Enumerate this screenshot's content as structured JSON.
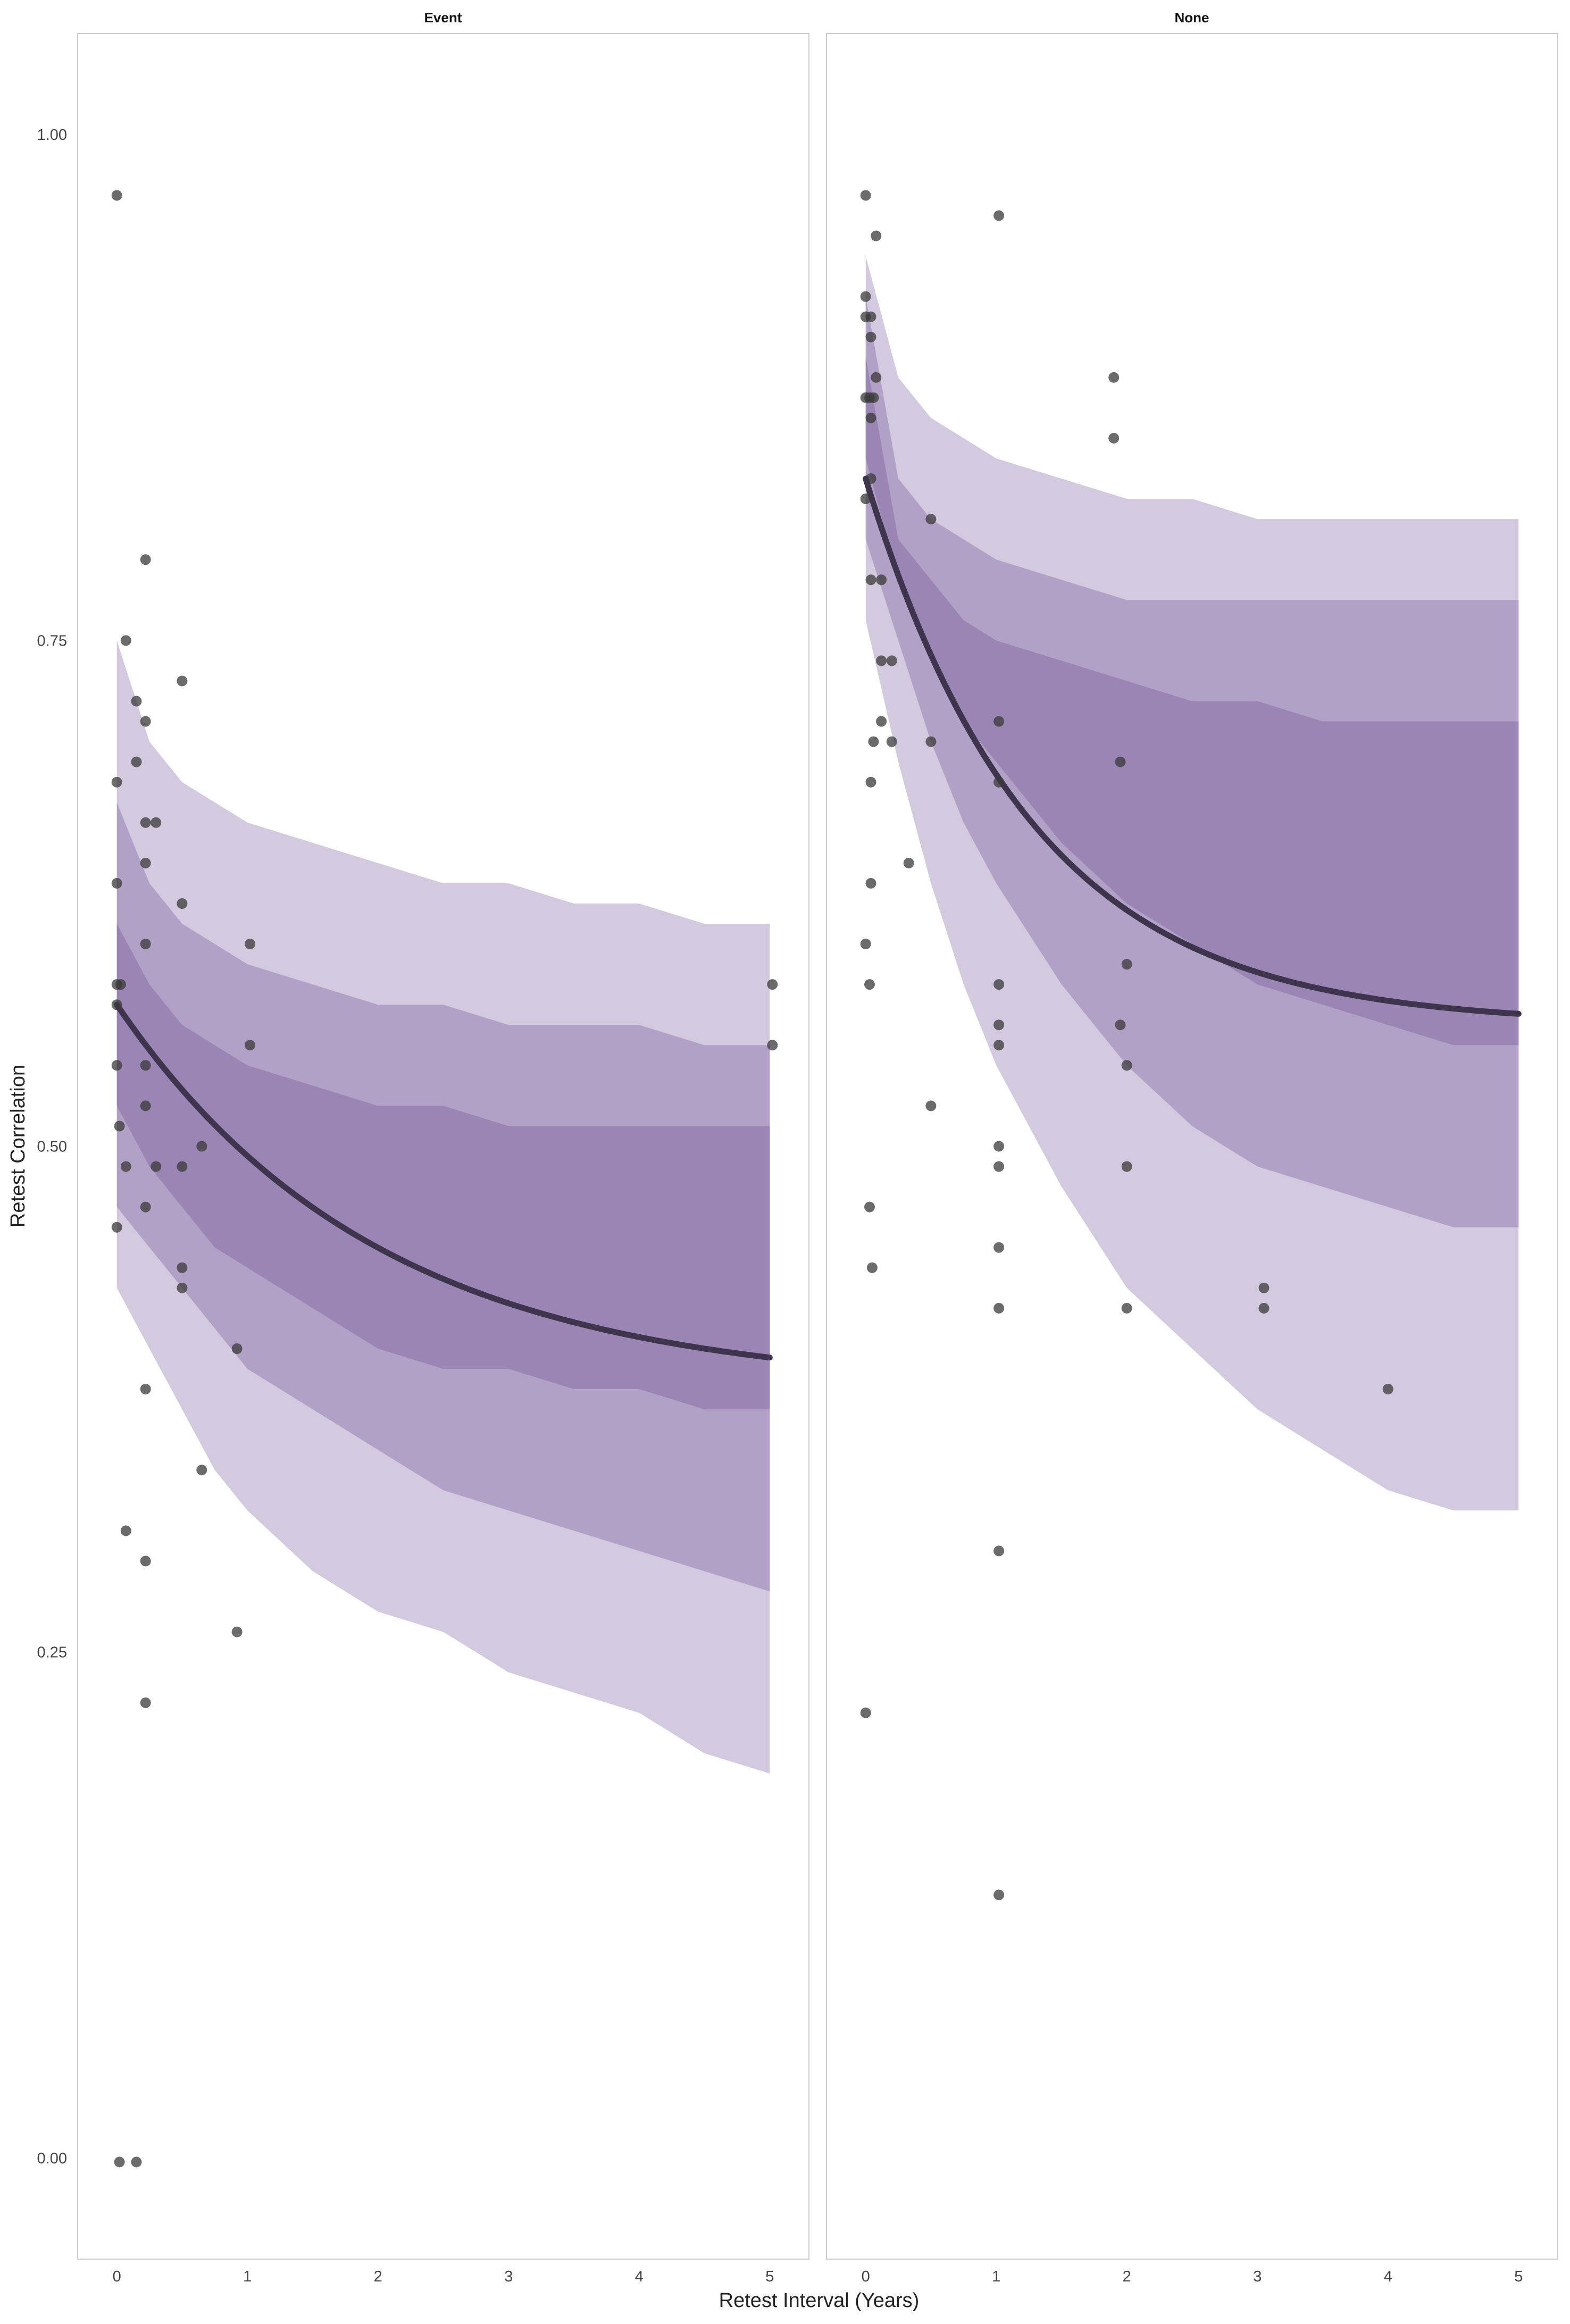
{
  "chart_data": {
    "type": "scatter",
    "xlabel": "Retest Interval (Years)",
    "ylabel": "Retest Correlation",
    "xlim": [
      -0.3,
      5.3
    ],
    "ylim": [
      -0.05,
      1.05
    ],
    "x_ticks": [
      0,
      1,
      2,
      3,
      4,
      5
    ],
    "y_ticks": [
      0.0,
      0.25,
      0.5,
      0.75,
      1.0
    ],
    "y_tick_labels": [
      "0.00",
      "0.25",
      "0.50",
      "0.75",
      "1.00"
    ],
    "grid": false,
    "colors": {
      "band_outer": "#d4cadf",
      "band_middle": "#b2a1c6",
      "band_inner": "#9a85b4",
      "fit_line": "#3f344d",
      "points": "#3a3a3a",
      "panel_border": "#cccccc"
    },
    "panels": [
      {
        "title": "Event",
        "band_x": [
          0.0,
          0.25,
          0.5,
          0.75,
          1.0,
          1.5,
          2.0,
          2.5,
          3.0,
          3.5,
          4.0,
          4.5,
          5.0
        ],
        "bands": {
          "outer": {
            "lower": [
              0.43,
              0.4,
              0.37,
              0.34,
              0.32,
              0.29,
              0.27,
              0.26,
              0.24,
              0.23,
              0.22,
              0.2,
              0.19
            ],
            "upper": [
              0.75,
              0.7,
              0.68,
              0.67,
              0.66,
              0.65,
              0.64,
              0.63,
              0.63,
              0.62,
              0.62,
              0.61,
              0.61
            ]
          },
          "middle": {
            "lower": [
              0.47,
              0.45,
              0.43,
              0.41,
              0.39,
              0.37,
              0.35,
              0.33,
              0.32,
              0.31,
              0.3,
              0.29,
              0.28
            ],
            "upper": [
              0.67,
              0.63,
              0.61,
              0.6,
              0.59,
              0.58,
              0.57,
              0.57,
              0.56,
              0.56,
              0.56,
              0.55,
              0.55
            ]
          },
          "inner": {
            "lower": [
              0.52,
              0.49,
              0.47,
              0.45,
              0.44,
              0.42,
              0.4,
              0.39,
              0.39,
              0.38,
              0.38,
              0.37,
              0.37
            ],
            "upper": [
              0.61,
              0.58,
              0.56,
              0.55,
              0.54,
              0.53,
              0.52,
              0.52,
              0.51,
              0.51,
              0.51,
              0.51,
              0.51
            ]
          }
        },
        "fit": {
          "y0": 0.57,
          "yinf": 0.38,
          "rate": 0.5
        },
        "points": [
          [
            0.0,
            0.97
          ],
          [
            0.07,
            0.75
          ],
          [
            0.15,
            0.72
          ],
          [
            0.22,
            0.79
          ],
          [
            0.22,
            0.71
          ],
          [
            0.15,
            0.69
          ],
          [
            0.0,
            0.68
          ],
          [
            0.5,
            0.73
          ],
          [
            0.22,
            0.66
          ],
          [
            0.3,
            0.66
          ],
          [
            0.22,
            0.64
          ],
          [
            0.0,
            0.63
          ],
          [
            0.5,
            0.62
          ],
          [
            0.22,
            0.6
          ],
          [
            1.02,
            0.6
          ],
          [
            0.0,
            0.58
          ],
          [
            0.03,
            0.58
          ],
          [
            5.02,
            0.58
          ],
          [
            0.0,
            0.57
          ],
          [
            1.02,
            0.55
          ],
          [
            5.02,
            0.55
          ],
          [
            0.0,
            0.54
          ],
          [
            0.22,
            0.54
          ],
          [
            0.22,
            0.52
          ],
          [
            0.02,
            0.51
          ],
          [
            0.65,
            0.5
          ],
          [
            0.07,
            0.49
          ],
          [
            0.3,
            0.49
          ],
          [
            0.5,
            0.49
          ],
          [
            0.22,
            0.47
          ],
          [
            0.0,
            0.46
          ],
          [
            0.5,
            0.44
          ],
          [
            0.5,
            0.43
          ],
          [
            0.92,
            0.4
          ],
          [
            0.22,
            0.38
          ],
          [
            0.65,
            0.34
          ],
          [
            0.07,
            0.31
          ],
          [
            0.22,
            0.295
          ],
          [
            0.92,
            0.26
          ],
          [
            0.22,
            0.225
          ],
          [
            0.02,
            -0.002
          ],
          [
            0.15,
            -0.002
          ]
        ]
      },
      {
        "title": "None",
        "band_x": [
          0.0,
          0.25,
          0.5,
          0.75,
          1.0,
          1.5,
          2.0,
          2.5,
          3.0,
          3.5,
          4.0,
          4.5,
          5.0
        ],
        "bands": {
          "outer": {
            "lower": [
              0.76,
              0.69,
              0.63,
              0.58,
              0.54,
              0.48,
              0.43,
              0.4,
              0.37,
              0.35,
              0.33,
              0.32,
              0.32
            ],
            "upper": [
              0.94,
              0.88,
              0.86,
              0.85,
              0.84,
              0.83,
              0.82,
              0.82,
              0.81,
              0.81,
              0.81,
              0.81,
              0.81
            ]
          },
          "middle": {
            "lower": [
              0.8,
              0.75,
              0.7,
              0.66,
              0.63,
              0.58,
              0.54,
              0.51,
              0.49,
              0.48,
              0.47,
              0.46,
              0.46
            ],
            "upper": [
              0.92,
              0.83,
              0.81,
              0.8,
              0.79,
              0.78,
              0.77,
              0.77,
              0.77,
              0.77,
              0.77,
              0.77,
              0.77
            ]
          },
          "inner": {
            "lower": [
              0.84,
              0.78,
              0.74,
              0.71,
              0.69,
              0.65,
              0.62,
              0.6,
              0.58,
              0.57,
              0.56,
              0.55,
              0.55
            ],
            "upper": [
              0.89,
              0.8,
              0.78,
              0.76,
              0.75,
              0.74,
              0.73,
              0.72,
              0.72,
              0.71,
              0.71,
              0.71,
              0.71
            ]
          }
        },
        "fit": {
          "y0": 0.83,
          "yinf": 0.56,
          "rate": 0.78
        },
        "points": [
          [
            0.0,
            0.97
          ],
          [
            1.02,
            0.96
          ],
          [
            0.08,
            0.95
          ],
          [
            0.0,
            0.92
          ],
          [
            0.0,
            0.91
          ],
          [
            0.04,
            0.91
          ],
          [
            0.04,
            0.9
          ],
          [
            0.08,
            0.88
          ],
          [
            1.9,
            0.88
          ],
          [
            0.0,
            0.87
          ],
          [
            0.03,
            0.87
          ],
          [
            0.06,
            0.87
          ],
          [
            0.04,
            0.86
          ],
          [
            1.9,
            0.85
          ],
          [
            0.04,
            0.83
          ],
          [
            0.0,
            0.82
          ],
          [
            0.5,
            0.81
          ],
          [
            0.04,
            0.78
          ],
          [
            0.12,
            0.78
          ],
          [
            0.12,
            0.74
          ],
          [
            0.2,
            0.74
          ],
          [
            0.12,
            0.71
          ],
          [
            1.02,
            0.71
          ],
          [
            0.06,
            0.7
          ],
          [
            0.2,
            0.7
          ],
          [
            0.5,
            0.7
          ],
          [
            1.95,
            0.69
          ],
          [
            0.04,
            0.68
          ],
          [
            1.02,
            0.68
          ],
          [
            0.33,
            0.64
          ],
          [
            0.04,
            0.63
          ],
          [
            0.0,
            0.6
          ],
          [
            2.0,
            0.59
          ],
          [
            0.03,
            0.58
          ],
          [
            1.02,
            0.58
          ],
          [
            1.02,
            0.56
          ],
          [
            1.95,
            0.56
          ],
          [
            1.02,
            0.55
          ],
          [
            2.0,
            0.54
          ],
          [
            0.5,
            0.52
          ],
          [
            1.02,
            0.5
          ],
          [
            1.02,
            0.49
          ],
          [
            2.0,
            0.49
          ],
          [
            0.03,
            0.47
          ],
          [
            1.02,
            0.45
          ],
          [
            0.05,
            0.44
          ],
          [
            3.05,
            0.43
          ],
          [
            1.02,
            0.42
          ],
          [
            2.0,
            0.42
          ],
          [
            3.05,
            0.42
          ],
          [
            4.0,
            0.38
          ],
          [
            1.02,
            0.3
          ],
          [
            0.0,
            0.22
          ],
          [
            1.02,
            0.13
          ]
        ]
      }
    ]
  }
}
